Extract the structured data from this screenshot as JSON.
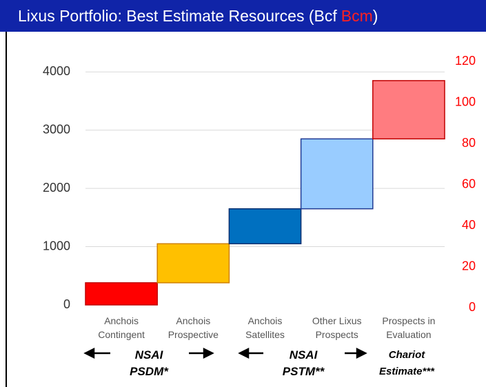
{
  "chart_data": {
    "type": "waterfall",
    "title": {
      "main": "Lixus Portfolio: Best Estimate Resources (Bcf",
      "alt_unit": "Bcm",
      "close": ")"
    },
    "categories": [
      "Anchois\nContingent",
      "Anchois\nProspective",
      "Anchois\nSatellites",
      "Other Lixus\nProspects",
      "Prospects in\nEvaluation"
    ],
    "values": [
      380,
      670,
      600,
      1200,
      1000
    ],
    "colors": [
      "#ff0000",
      "#ffc000",
      "#0070c0",
      "#99ccff",
      "#ff7c80"
    ],
    "border_colors": [
      "#c00000",
      "#d08000",
      "#002d6e",
      "#1f3a93",
      "#c00000"
    ],
    "ylim": [
      0,
      4180
    ],
    "yticks": [
      0,
      1000,
      2000,
      3000,
      4000
    ],
    "y2lim": [
      0,
      120
    ],
    "y2ticks": [
      0,
      20,
      40,
      60,
      80,
      100,
      120
    ],
    "y2_color": "#ff0000",
    "grid": true,
    "annotations": [
      "NSAI\nPSDM*",
      "NSAI\nPSTM**",
      "Chariot\nEstimate***"
    ]
  }
}
